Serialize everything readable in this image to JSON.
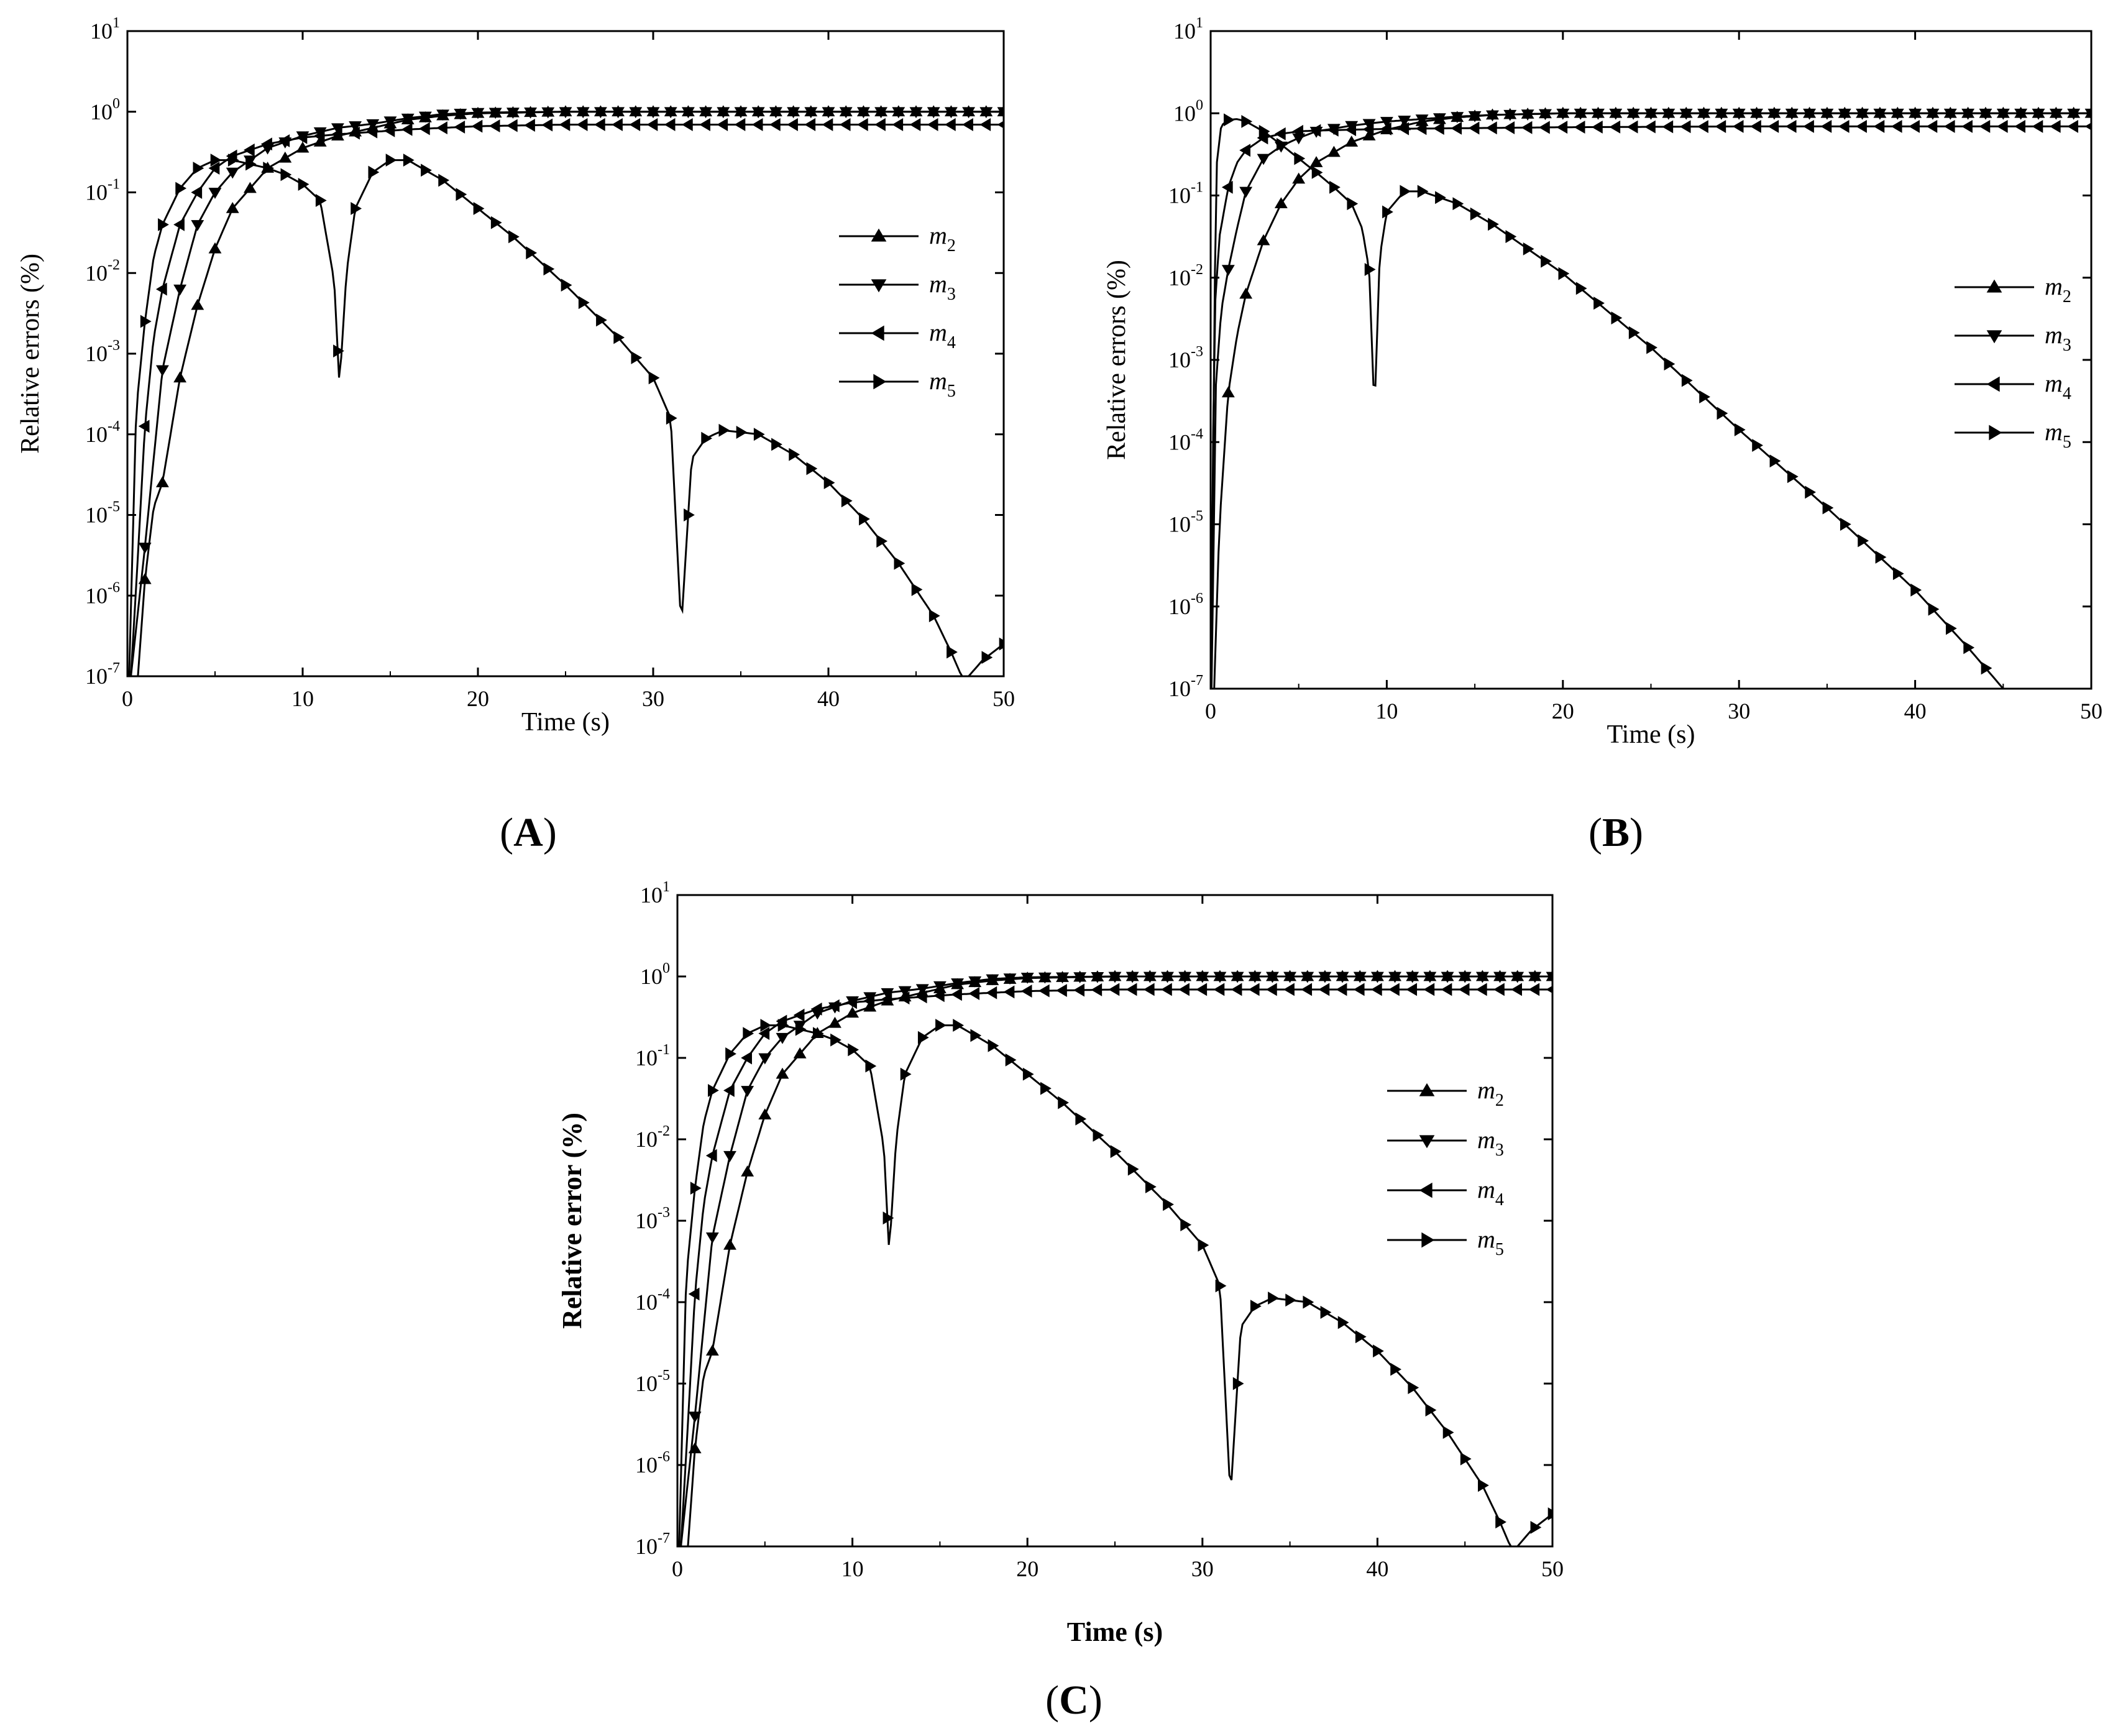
{
  "figure": {
    "panels": [
      {
        "id": "A",
        "label_open": "(",
        "label_letter": "A",
        "label_close": ")"
      },
      {
        "id": "B",
        "label_open": "(",
        "label_letter": "B",
        "label_close": ")"
      },
      {
        "id": "C",
        "label_open": "(",
        "label_letter": "C",
        "label_close": ")"
      }
    ]
  },
  "chart_data": [
    {
      "id": "A",
      "type": "line",
      "title": "",
      "xlabel": "Time (s)",
      "ylabel": "Relative errors (%)",
      "xlim": [
        0,
        50
      ],
      "ylim_log10": [
        -7,
        1
      ],
      "xticks": [
        "0",
        "10",
        "20",
        "30",
        "40",
        "50"
      ],
      "yticks": [
        {
          "base": "10",
          "exp": "-7"
        },
        {
          "base": "10",
          "exp": "-6"
        },
        {
          "base": "10",
          "exp": "-5"
        },
        {
          "base": "10",
          "exp": "-4"
        },
        {
          "base": "10",
          "exp": "-3"
        },
        {
          "base": "10",
          "exp": "-2"
        },
        {
          "base": "10",
          "exp": "-1"
        },
        {
          "base": "10",
          "exp": "0"
        },
        {
          "base": "10",
          "exp": "1"
        }
      ],
      "legend": {
        "placement": "right-middle"
      },
      "series": [
        {
          "name": "m",
          "sub": "2",
          "marker": "triangle-up",
          "x": [
            0.6,
            1,
            1.5,
            2,
            3,
            4,
            5,
            6,
            8,
            10,
            12,
            14,
            16,
            18,
            20,
            25,
            30,
            40,
            50
          ],
          "y": [
            -7,
            -5.8,
            -4.9,
            -4.6,
            -3.3,
            -2.4,
            -1.7,
            -1.2,
            -0.7,
            -0.45,
            -0.3,
            -0.2,
            -0.1,
            -0.05,
            -0.02,
            0,
            0,
            0,
            0
          ]
        },
        {
          "name": "m",
          "sub": "3",
          "marker": "triangle-down",
          "x": [
            0.2,
            0.6,
            1,
            1.5,
            2,
            3,
            4,
            5,
            6,
            8,
            10,
            12,
            14,
            16,
            18,
            20,
            25,
            30,
            40,
            50
          ],
          "y": [
            -7,
            -6.2,
            -5.4,
            -4.3,
            -3.2,
            -2.2,
            -1.4,
            -1.0,
            -0.75,
            -0.45,
            -0.3,
            -0.2,
            -0.15,
            -0.08,
            -0.03,
            -0.01,
            0,
            0,
            0,
            0
          ]
        },
        {
          "name": "m",
          "sub": "4",
          "marker": "triangle-left",
          "x": [
            0.2,
            0.6,
            1,
            1.5,
            2,
            3,
            4,
            5,
            6,
            8,
            10,
            12,
            14,
            16,
            18,
            20,
            25,
            30,
            40,
            50
          ],
          "y": [
            -7,
            -5.5,
            -3.9,
            -2.8,
            -2.2,
            -1.4,
            -1.0,
            -0.7,
            -0.55,
            -0.4,
            -0.32,
            -0.28,
            -0.25,
            -0.22,
            -0.2,
            -0.18,
            -0.16,
            -0.16,
            -0.16,
            -0.16
          ]
        },
        {
          "name": "m",
          "sub": "5",
          "marker": "triangle-right",
          "x": [
            0.1,
            0.5,
            1,
            1.5,
            2,
            3,
            4,
            5,
            6,
            7,
            8,
            9,
            10,
            11,
            11.8,
            12.1,
            12.5,
            13,
            14,
            15,
            16,
            18,
            20,
            22,
            25,
            28,
            30,
            31,
            31.6,
            32.2,
            33,
            34,
            36,
            38,
            40,
            42,
            44,
            46,
            47,
            47.6,
            48,
            48.8,
            50
          ],
          "y": [
            -7,
            -3.7,
            -2.6,
            -1.8,
            -1.4,
            -0.95,
            -0.7,
            -0.6,
            -0.6,
            -0.65,
            -0.7,
            -0.78,
            -0.9,
            -1.1,
            -2.1,
            -3.4,
            -2.0,
            -1.2,
            -0.75,
            -0.6,
            -0.6,
            -0.85,
            -1.2,
            -1.55,
            -2.15,
            -2.8,
            -3.3,
            -3.8,
            -6.4,
            -4.3,
            -4.05,
            -3.95,
            -4.0,
            -4.25,
            -4.6,
            -5.05,
            -5.6,
            -6.25,
            -6.7,
            -7.0,
            -7.0,
            -6.8,
            -6.6
          ]
        }
      ]
    },
    {
      "id": "B",
      "type": "line",
      "title": "",
      "xlabel": "Time (s)",
      "ylabel": "Relative errors (%)",
      "xlim": [
        0,
        50
      ],
      "ylim_log10": [
        -7,
        1
      ],
      "xticks": [
        "0",
        "10",
        "20",
        "30",
        "40",
        "50"
      ],
      "yticks": [
        {
          "base": "10",
          "exp": "-7"
        },
        {
          "base": "10",
          "exp": "-6"
        },
        {
          "base": "10",
          "exp": "-5"
        },
        {
          "base": "10",
          "exp": "-4"
        },
        {
          "base": "10",
          "exp": "-3"
        },
        {
          "base": "10",
          "exp": "-2"
        },
        {
          "base": "10",
          "exp": "-1"
        },
        {
          "base": "10",
          "exp": "0"
        },
        {
          "base": "10",
          "exp": "1"
        }
      ],
      "legend": {
        "placement": "right-middle"
      },
      "series": [
        {
          "name": "m",
          "sub": "2",
          "marker": "triangle-up",
          "x": [
            0.2,
            0.5,
            1,
            1.5,
            2,
            3,
            4,
            5,
            6,
            8,
            10,
            12,
            14,
            16,
            20,
            25,
            30,
            40,
            50
          ],
          "y": [
            -7,
            -5.0,
            -3.4,
            -2.7,
            -2.2,
            -1.55,
            -1.1,
            -0.8,
            -0.6,
            -0.35,
            -0.2,
            -0.1,
            -0.05,
            -0.02,
            0,
            0,
            0,
            0,
            0
          ]
        },
        {
          "name": "m",
          "sub": "3",
          "marker": "triangle-down",
          "x": [
            0.05,
            0.3,
            0.6,
            1,
            1.5,
            2,
            3,
            4,
            5,
            6,
            8,
            10,
            12,
            14,
            16,
            18,
            20,
            25,
            30,
            40,
            50
          ],
          "y": [
            -7,
            -3.3,
            -2.4,
            -1.9,
            -1.4,
            -0.95,
            -0.55,
            -0.4,
            -0.3,
            -0.22,
            -0.15,
            -0.1,
            -0.07,
            -0.04,
            -0.02,
            -0.01,
            0,
            0,
            0,
            0,
            0
          ]
        },
        {
          "name": "m",
          "sub": "4",
          "marker": "triangle-left",
          "x": [
            0.02,
            0.2,
            0.5,
            1,
            1.5,
            2,
            3,
            4,
            5,
            6,
            8,
            10,
            15,
            20,
            30,
            40,
            50
          ],
          "y": [
            -7,
            -2.5,
            -1.5,
            -0.9,
            -0.6,
            -0.45,
            -0.3,
            -0.25,
            -0.22,
            -0.21,
            -0.2,
            -0.19,
            -0.18,
            -0.17,
            -0.16,
            -0.16,
            -0.16
          ]
        },
        {
          "name": "m",
          "sub": "5",
          "marker": "triangle-right",
          "x": [
            0.02,
            0.3,
            0.6,
            1,
            1.5,
            2,
            3,
            4,
            5,
            6,
            7,
            8,
            8.6,
            9.0,
            9.3,
            9.6,
            10,
            11,
            12,
            14,
            16,
            18,
            20,
            25,
            30,
            35,
            40,
            43,
            45
          ],
          "y": [
            -7,
            -0.7,
            -0.15,
            -0.08,
            -0.07,
            -0.1,
            -0.22,
            -0.38,
            -0.55,
            -0.72,
            -0.9,
            -1.1,
            -1.4,
            -1.9,
            -3.65,
            -1.75,
            -1.2,
            -0.95,
            -0.95,
            -1.1,
            -1.35,
            -1.65,
            -1.95,
            -2.85,
            -3.85,
            -4.8,
            -5.8,
            -6.5,
            -7.0
          ]
        }
      ]
    },
    {
      "id": "C",
      "type": "line",
      "title": "",
      "xlabel": "Time (s)",
      "ylabel": "Relative error (%)",
      "xlim": [
        0,
        50
      ],
      "ylim_log10": [
        -7,
        1
      ],
      "xticks": [
        "0",
        "10",
        "20",
        "30",
        "40",
        "50"
      ],
      "yticks": [
        {
          "base": "10",
          "exp": "-7"
        },
        {
          "base": "10",
          "exp": "-6"
        },
        {
          "base": "10",
          "exp": "-5"
        },
        {
          "base": "10",
          "exp": "-4"
        },
        {
          "base": "10",
          "exp": "-3"
        },
        {
          "base": "10",
          "exp": "-2"
        },
        {
          "base": "10",
          "exp": "-1"
        },
        {
          "base": "10",
          "exp": "0"
        },
        {
          "base": "10",
          "exp": "1"
        }
      ],
      "legend": {
        "placement": "right-middle"
      },
      "series": [
        {
          "name": "m",
          "sub": "2",
          "marker": "triangle-up",
          "x": [
            0.6,
            1,
            1.5,
            2,
            3,
            4,
            5,
            6,
            8,
            10,
            12,
            14,
            16,
            18,
            20,
            25,
            30,
            40,
            50
          ],
          "y": [
            -7,
            -5.8,
            -4.9,
            -4.6,
            -3.3,
            -2.4,
            -1.7,
            -1.2,
            -0.7,
            -0.45,
            -0.3,
            -0.2,
            -0.1,
            -0.05,
            -0.02,
            0,
            0,
            0,
            0
          ]
        },
        {
          "name": "m",
          "sub": "3",
          "marker": "triangle-down",
          "x": [
            0.2,
            0.6,
            1,
            1.5,
            2,
            3,
            4,
            5,
            6,
            8,
            10,
            12,
            14,
            16,
            18,
            20,
            25,
            30,
            40,
            50
          ],
          "y": [
            -7,
            -6.2,
            -5.4,
            -4.3,
            -3.2,
            -2.2,
            -1.4,
            -1.0,
            -0.75,
            -0.45,
            -0.3,
            -0.2,
            -0.15,
            -0.08,
            -0.03,
            -0.01,
            0,
            0,
            0,
            0
          ]
        },
        {
          "name": "m",
          "sub": "4",
          "marker": "triangle-left",
          "x": [
            0.2,
            0.6,
            1,
            1.5,
            2,
            3,
            4,
            5,
            6,
            8,
            10,
            12,
            14,
            16,
            18,
            20,
            25,
            30,
            40,
            50
          ],
          "y": [
            -7,
            -5.5,
            -3.9,
            -2.8,
            -2.2,
            -1.4,
            -1.0,
            -0.7,
            -0.55,
            -0.4,
            -0.32,
            -0.28,
            -0.25,
            -0.22,
            -0.2,
            -0.18,
            -0.16,
            -0.16,
            -0.16,
            -0.16
          ]
        },
        {
          "name": "m",
          "sub": "5",
          "marker": "triangle-right",
          "x": [
            0.1,
            0.5,
            1,
            1.5,
            2,
            3,
            4,
            5,
            6,
            7,
            8,
            9,
            10,
            11,
            11.8,
            12.1,
            12.5,
            13,
            14,
            15,
            16,
            18,
            20,
            22,
            25,
            28,
            30,
            31,
            31.6,
            32.2,
            33,
            34,
            36,
            38,
            40,
            42,
            44,
            46,
            47,
            47.6,
            48,
            48.8,
            50
          ],
          "y": [
            -7,
            -3.7,
            -2.6,
            -1.8,
            -1.4,
            -0.95,
            -0.7,
            -0.6,
            -0.6,
            -0.65,
            -0.7,
            -0.78,
            -0.9,
            -1.1,
            -2.1,
            -3.4,
            -2.0,
            -1.2,
            -0.75,
            -0.6,
            -0.6,
            -0.85,
            -1.2,
            -1.55,
            -2.15,
            -2.8,
            -3.3,
            -3.8,
            -6.4,
            -4.3,
            -4.05,
            -3.95,
            -4.0,
            -4.25,
            -4.6,
            -5.05,
            -5.6,
            -6.25,
            -6.7,
            -7.0,
            -7.0,
            -6.8,
            -6.6
          ]
        }
      ]
    }
  ]
}
